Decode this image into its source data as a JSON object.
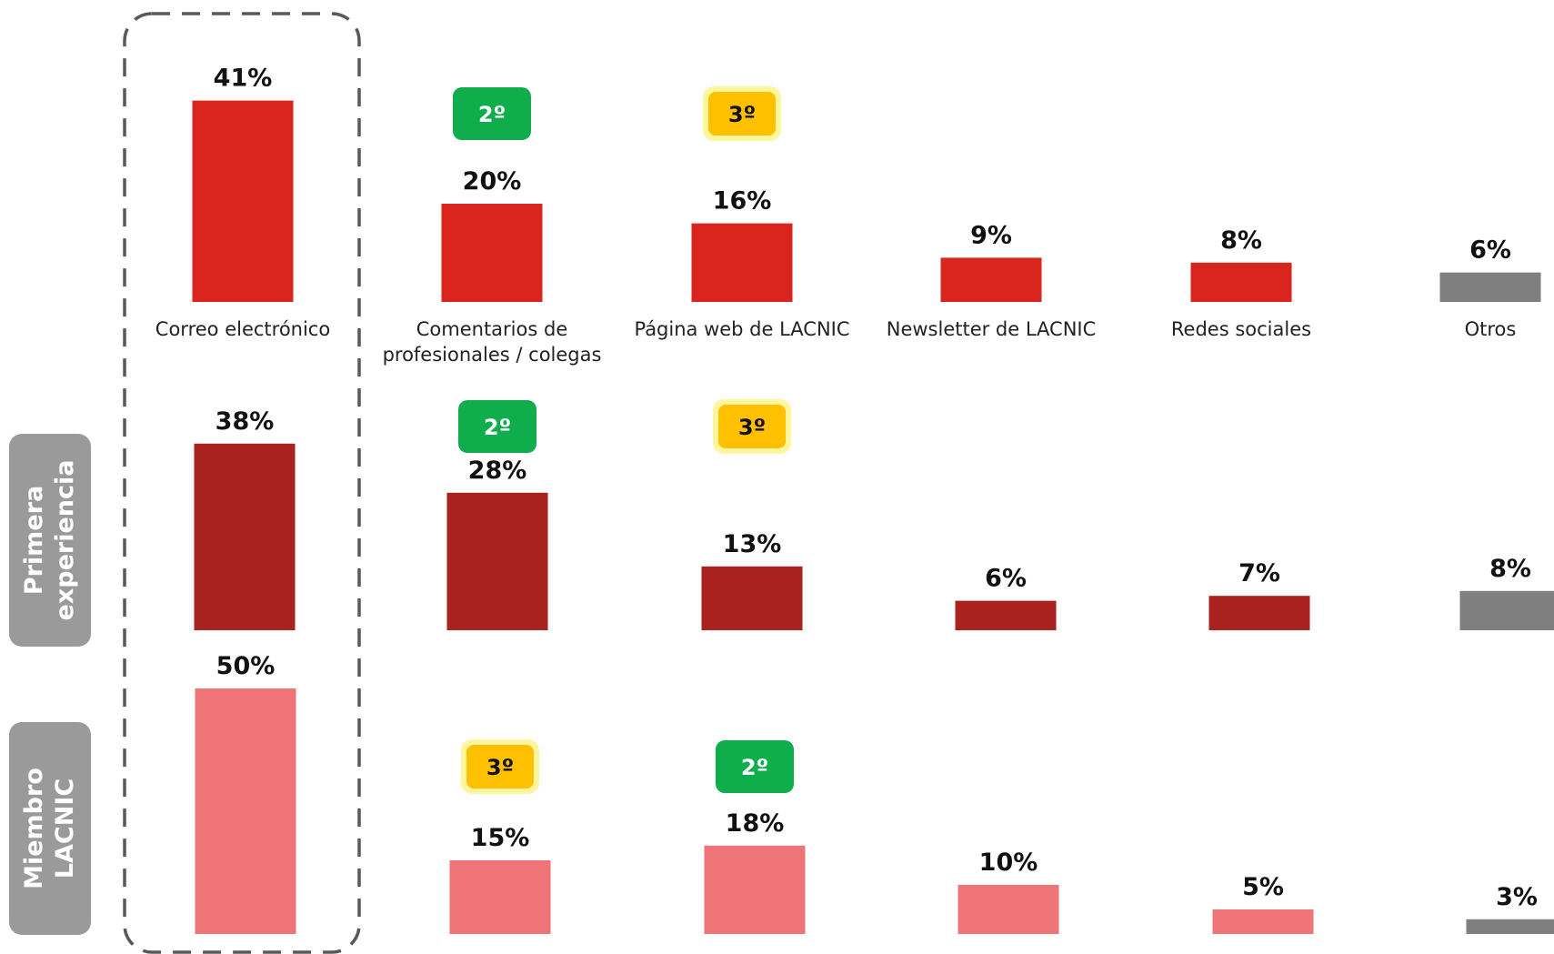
{
  "chart_data": {
    "type": "bar",
    "categories": [
      "Correo electrónico",
      "Comentarios de profesionales / colegas",
      "Página web de LACNIC",
      "Newsletter de LACNIC",
      "Redes sociales",
      "Otros"
    ],
    "category_lines": [
      [
        "Correo electrónico"
      ],
      [
        "Comentarios de",
        "profesionales / colegas"
      ],
      [
        "Página web de LACNIC"
      ],
      [
        "Newsletter de LACNIC"
      ],
      [
        "Redes sociales"
      ],
      [
        "Otros"
      ]
    ],
    "series": [
      {
        "values": [
          41,
          20,
          16,
          9,
          8,
          6
        ],
        "value_labels": [
          "41%",
          "20%",
          "16%",
          "9%",
          "8%",
          "6%"
        ]
      },
      {
        "name": "Primera experiencia",
        "name_lines": [
          "Primera",
          "experiencia"
        ],
        "values": [
          38,
          28,
          13,
          6,
          7,
          8
        ],
        "value_labels": [
          "38%",
          "28%",
          "13%",
          "6%",
          "7%",
          "8%"
        ]
      },
      {
        "name": "Miembro LACNIC",
        "name_lines": [
          "Miembro",
          "LACNIC"
        ],
        "values": [
          50,
          15,
          18,
          10,
          5,
          3
        ],
        "value_labels": [
          "50%",
          "15%",
          "18%",
          "10%",
          "5%",
          "3%"
        ]
      }
    ],
    "rank_badges": [
      [
        {
          "category": 1,
          "label": "2º",
          "color": "green"
        },
        {
          "category": 2,
          "label": "3º",
          "color": "yellow"
        }
      ],
      [
        {
          "category": 1,
          "label": "2º",
          "color": "green"
        },
        {
          "category": 2,
          "label": "3º",
          "color": "yellow"
        }
      ],
      [
        {
          "category": 1,
          "label": "3º",
          "color": "yellow"
        },
        {
          "category": 2,
          "label": "2º",
          "color": "green"
        }
      ]
    ],
    "highlighted_category": "Correo electrónico",
    "colors": {
      "series": [
        "#d9251e",
        "#a9221d",
        "#ee7478"
      ],
      "otros": "#7f7f7f",
      "badge_green": "#0fad4c",
      "badge_yellow": "#ffc000",
      "badge_yellow_glow": "#fff59d",
      "segment_label_bg": "#9a9a9a",
      "highlight_border": "#595959"
    },
    "ylim": [
      0,
      50
    ]
  }
}
